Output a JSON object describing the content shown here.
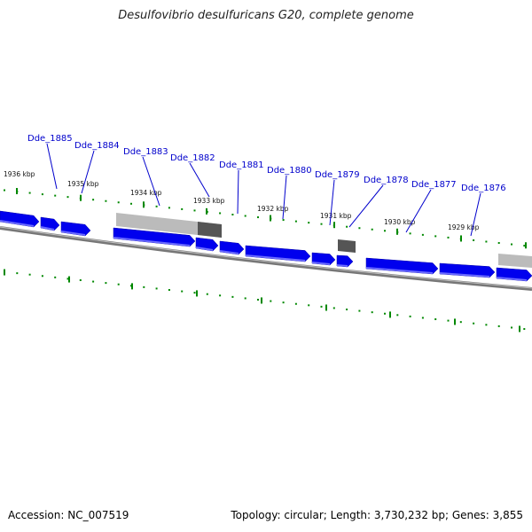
{
  "title": "Desulfovibrio desulfuricans G20, complete genome",
  "footer": {
    "accession": "Accession: NC_007519",
    "summary": "Topology: circular; Length: 3,730,232 bp; Genes: 3,855"
  },
  "colors": {
    "gene": "#0000ee",
    "pseudo_dark": "#555555",
    "pseudo_light": "#bbbbbb",
    "tick": "#008800",
    "backbone": "#777777",
    "label": "#0000cc"
  },
  "kbp_labels": [
    "1936 kbp",
    "1935 kbp",
    "1934 kbp",
    "1933 kbp",
    "1932 kbp",
    "1931 kbp",
    "1930 kbp",
    "1929 kbp"
  ],
  "gene_labels": [
    "Dde_1885",
    "Dde_1884",
    "Dde_1883",
    "Dde_1882",
    "Dde_1881",
    "Dde_1880",
    "Dde_1879",
    "Dde_1878",
    "Dde_1877",
    "Dde_1876"
  ]
}
